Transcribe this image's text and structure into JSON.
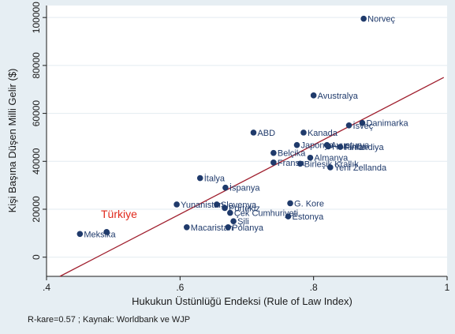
{
  "chart_data": {
    "type": "scatter",
    "xlabel": "Hukukun Üstünlüğü Endeksi (Rule of Law Index)",
    "ylabel": "Kişi Başına Düşen Milli Gelir ($)",
    "xlim": [
      0.4,
      1.0
    ],
    "ylim": [
      -8000,
      105000
    ],
    "xticks": [
      0.4,
      0.6,
      0.8,
      1.0
    ],
    "xtick_labels": [
      ".4",
      ".6",
      ".8",
      "1"
    ],
    "yticks": [
      0,
      20000,
      40000,
      60000,
      80000,
      100000
    ],
    "ytick_labels": [
      "0",
      "20000",
      "40000",
      "60000",
      "80000",
      "100000"
    ],
    "grid": "horizontal",
    "fit_line": {
      "x": [
        0.42,
        0.995
      ],
      "y": [
        -8000,
        75000
      ]
    },
    "highlight": {
      "label": "Türkiye",
      "x": 0.49,
      "y": 10500,
      "color": "#e0281b"
    },
    "note": "R-kare=0.57 ; Kaynak: Worldbank ve WJP",
    "point_color": "#1f3a6b",
    "line_color": "#a01f2e",
    "points": [
      {
        "label": "Norveç",
        "x": 0.875,
        "y": 99500
      },
      {
        "label": "Avustralya",
        "x": 0.8,
        "y": 67500
      },
      {
        "label": "İsveç",
        "x": 0.853,
        "y": 55000
      },
      {
        "label": "Danimarka",
        "x": 0.873,
        "y": 56000
      },
      {
        "label": "ABD",
        "x": 0.71,
        "y": 52000
      },
      {
        "label": "Kanada",
        "x": 0.785,
        "y": 52000
      },
      {
        "label": "Japonya",
        "x": 0.775,
        "y": 46800
      },
      {
        "label": "Avusturya",
        "x": 0.82,
        "y": 46800
      },
      {
        "label": "Hollanda",
        "x": 0.822,
        "y": 46200
      },
      {
        "label": "Finlandiya",
        "x": 0.84,
        "y": 46000
      },
      {
        "label": "Belçika",
        "x": 0.74,
        "y": 43500
      },
      {
        "label": "Almanya",
        "x": 0.795,
        "y": 41500
      },
      {
        "label": "Fransa",
        "x": 0.74,
        "y": 39500
      },
      {
        "label": "Birleşik Krallık",
        "x": 0.78,
        "y": 39000
      },
      {
        "label": "Yeni Zellanda",
        "x": 0.825,
        "y": 37500
      },
      {
        "label": "İtalya",
        "x": 0.63,
        "y": 33000
      },
      {
        "label": "İspanya",
        "x": 0.668,
        "y": 29000
      },
      {
        "label": "G. Kore",
        "x": 0.765,
        "y": 22500
      },
      {
        "label": "Yunanistan",
        "x": 0.595,
        "y": 22000
      },
      {
        "label": "Slovenya",
        "x": 0.655,
        "y": 22000
      },
      {
        "label": "Portekiz",
        "x": 0.667,
        "y": 20500
      },
      {
        "label": "Çek Cumhuriyeti",
        "x": 0.675,
        "y": 18500
      },
      {
        "label": "Estonya",
        "x": 0.762,
        "y": 17000
      },
      {
        "label": "Şili",
        "x": 0.68,
        "y": 15000
      },
      {
        "label": "Macaristan",
        "x": 0.61,
        "y": 12500
      },
      {
        "label": "Polanya",
        "x": 0.672,
        "y": 12500
      },
      {
        "label": "Meksika",
        "x": 0.45,
        "y": 9700
      },
      {
        "label": "",
        "x": 0.49,
        "y": 10500
      }
    ]
  }
}
